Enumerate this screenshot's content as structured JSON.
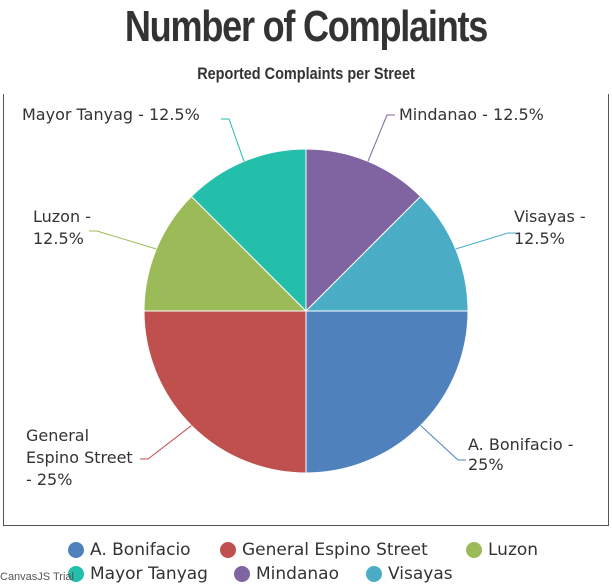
{
  "chart_data": {
    "type": "pie",
    "title": "Number of Complaints",
    "subtitle": "Reported Complaints per Street",
    "slices": [
      {
        "name": "A. Bonifacio",
        "value": 25,
        "label": [
          "A. Bonifacio -",
          "25%"
        ],
        "color": "#4F81BC"
      },
      {
        "name": "General Espino Street",
        "value": 25,
        "label": [
          "General",
          "Espino Street",
          "- 25%"
        ],
        "color": "#C0504E"
      },
      {
        "name": "Luzon",
        "value": 12.5,
        "label": [
          "Luzon -",
          "12.5%"
        ],
        "color": "#9BBB58"
      },
      {
        "name": "Mayor Tanyag",
        "value": 12.5,
        "label": [
          "Mayor Tanyag - 12.5%"
        ],
        "color": "#23BFAA"
      },
      {
        "name": "Mindanao",
        "value": 12.5,
        "label": [
          "Mindanao - 12.5%"
        ],
        "color": "#8064A1"
      },
      {
        "name": "Visayas",
        "value": 12.5,
        "label": [
          "Visayas -",
          "12.5%"
        ],
        "color": "#4AACC5"
      }
    ],
    "legend_position": "bottom"
  },
  "watermark": "CanvasJS Trial"
}
